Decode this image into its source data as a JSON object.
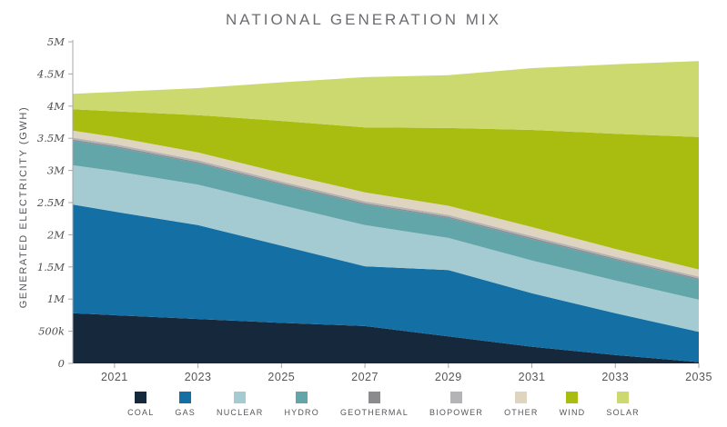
{
  "title": "NATIONAL GENERATION MIX",
  "y_axis_title": "GENERATED ELECTRICITY (GWH)",
  "chart_data": {
    "type": "area",
    "stacked": true,
    "title": "NATIONAL GENERATION MIX",
    "xlabel": "",
    "ylabel": "GENERATED ELECTRICITY (GWH)",
    "units": "GWh",
    "grid": false,
    "legend_position": "bottom",
    "xlim": [
      2020,
      2035
    ],
    "ylim": [
      0,
      5000000
    ],
    "x": [
      2020,
      2021,
      2023,
      2025,
      2027,
      2029,
      2031,
      2033,
      2035
    ],
    "x_ticks": [
      {
        "value": 2021,
        "label": "2021"
      },
      {
        "value": 2023,
        "label": "2023"
      },
      {
        "value": 2025,
        "label": "2025"
      },
      {
        "value": 2027,
        "label": "2027"
      },
      {
        "value": 2029,
        "label": "2029"
      },
      {
        "value": 2031,
        "label": "2031"
      },
      {
        "value": 2033,
        "label": "2033"
      },
      {
        "value": 2035,
        "label": "2035"
      }
    ],
    "y_ticks": [
      {
        "value": 0,
        "label": "0"
      },
      {
        "value": 500000,
        "label": "500k"
      },
      {
        "value": 1000000,
        "label": "1M"
      },
      {
        "value": 1500000,
        "label": "1.5M"
      },
      {
        "value": 2000000,
        "label": "2M"
      },
      {
        "value": 2500000,
        "label": "2.5M"
      },
      {
        "value": 3000000,
        "label": "3M"
      },
      {
        "value": 3500000,
        "label": "3.5M"
      },
      {
        "value": 4000000,
        "label": "4M"
      },
      {
        "value": 4500000,
        "label": "4.5M"
      },
      {
        "value": 5000000,
        "label": "5M"
      }
    ],
    "series": [
      {
        "name": "COAL",
        "color": "#16293c",
        "values": [
          780000,
          750000,
          690000,
          630000,
          580000,
          420000,
          260000,
          130000,
          20000
        ]
      },
      {
        "name": "GAS",
        "color": "#146fa5",
        "values": [
          1690000,
          1610000,
          1460000,
          1200000,
          930000,
          1030000,
          830000,
          650000,
          470000
        ]
      },
      {
        "name": "NUCLEAR",
        "color": "#a3cbd1",
        "values": [
          610000,
          630000,
          630000,
          630000,
          640000,
          500000,
          510000,
          510000,
          500000
        ]
      },
      {
        "name": "HYDRO",
        "color": "#62a6aa",
        "values": [
          380000,
          370000,
          330000,
          320000,
          320000,
          310000,
          330000,
          320000,
          310000
        ]
      },
      {
        "name": "GEOTHERMAL",
        "color": "#8b8b8d",
        "values": [
          20000,
          20000,
          20000,
          20000,
          20000,
          20000,
          20000,
          20000,
          20000
        ]
      },
      {
        "name": "BIOPOWER",
        "color": "#b4b4b6",
        "values": [
          30000,
          30000,
          30000,
          30000,
          30000,
          30000,
          30000,
          30000,
          30000
        ]
      },
      {
        "name": "OTHER",
        "color": "#ded4bf",
        "values": [
          110000,
          110000,
          120000,
          130000,
          140000,
          140000,
          140000,
          120000,
          110000
        ]
      },
      {
        "name": "WIND",
        "color": "#a9bc10",
        "values": [
          330000,
          400000,
          580000,
          810000,
          1010000,
          1210000,
          1510000,
          1790000,
          2060000
        ]
      },
      {
        "name": "SOLAR",
        "color": "#cbd96e",
        "values": [
          240000,
          300000,
          420000,
          600000,
          780000,
          820000,
          960000,
          1080000,
          1180000
        ]
      }
    ]
  },
  "axis_style": {
    "line_color": "#a7a7a9",
    "tick_length": 5
  }
}
